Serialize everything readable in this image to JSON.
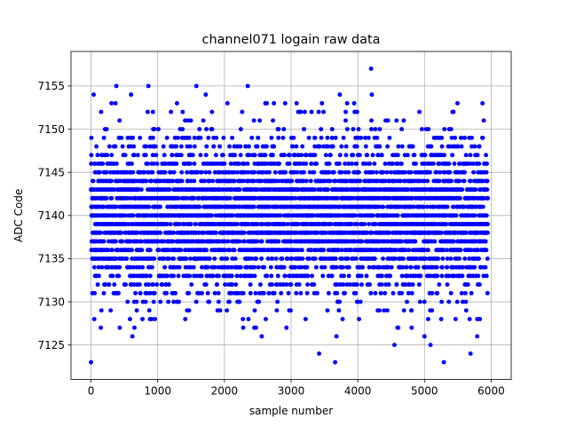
{
  "chart_data": {
    "type": "scatter",
    "title": "channel071 logain raw data",
    "xlabel": "sample number",
    "ylabel": "ADC Code",
    "xlim": [
      -300,
      6300
    ],
    "ylim": [
      7121,
      7159
    ],
    "x_ticks": [
      0,
      1000,
      2000,
      3000,
      4000,
      5000,
      6000
    ],
    "y_ticks": [
      7125,
      7130,
      7135,
      7140,
      7145,
      7150,
      7155
    ],
    "grid": true,
    "legend": "none",
    "marker_color": "#0000ff",
    "x_range": [
      0,
      5940
    ],
    "y_bulk_range": [
      7131,
      7149
    ],
    "outliers": [
      {
        "x": 0,
        "y": 7123
      },
      {
        "x": 40,
        "y": 7154
      },
      {
        "x": 380,
        "y": 7155
      },
      {
        "x": 600,
        "y": 7154
      },
      {
        "x": 620,
        "y": 7126
      },
      {
        "x": 860,
        "y": 7155
      },
      {
        "x": 1580,
        "y": 7155
      },
      {
        "x": 1720,
        "y": 7154
      },
      {
        "x": 2350,
        "y": 7155
      },
      {
        "x": 2560,
        "y": 7126
      },
      {
        "x": 3420,
        "y": 7124
      },
      {
        "x": 3660,
        "y": 7123
      },
      {
        "x": 3680,
        "y": 7126
      },
      {
        "x": 3730,
        "y": 7154
      },
      {
        "x": 4200,
        "y": 7157
      },
      {
        "x": 4210,
        "y": 7154
      },
      {
        "x": 4550,
        "y": 7125
      },
      {
        "x": 5000,
        "y": 7126
      },
      {
        "x": 5090,
        "y": 7125
      },
      {
        "x": 5290,
        "y": 7123
      },
      {
        "x": 5690,
        "y": 7124
      },
      {
        "x": 5790,
        "y": 7126
      },
      {
        "x": 5870,
        "y": 7153
      }
    ]
  }
}
